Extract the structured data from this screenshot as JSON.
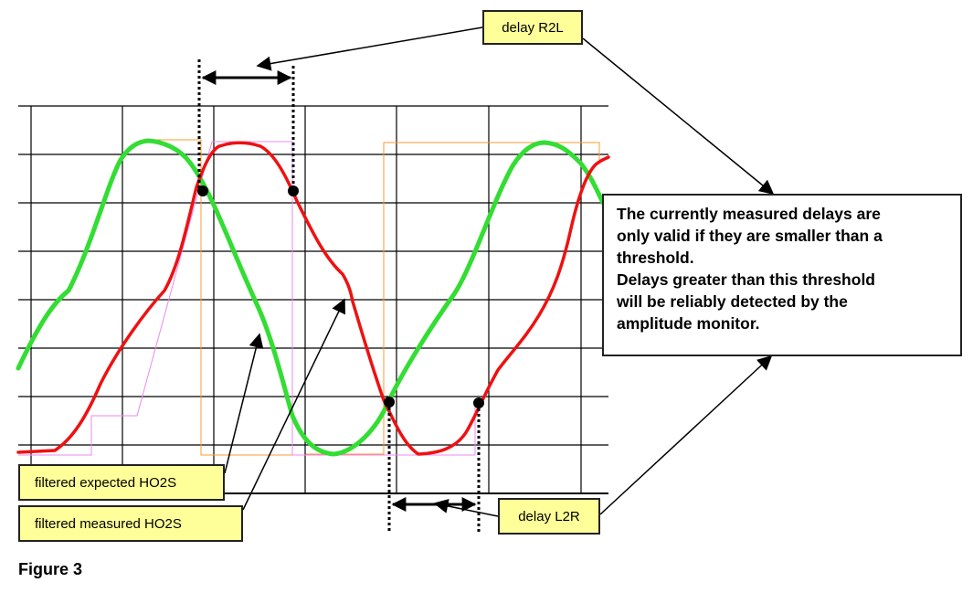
{
  "labels": {
    "delay_r2l": "delay R2L",
    "delay_l2r": "delay L2R",
    "expected": "filtered expected HO2S",
    "measured": "filtered measured HO2S"
  },
  "note": {
    "lines": [
      "The currently measured delays are",
      "only valid if they are smaller than a",
      "threshold.",
      "Delays greater than this threshold",
      "will be reliably detected by the",
      "amplitude monitor."
    ]
  },
  "caption": "Figure 3",
  "colors": {
    "expected_trace": "#33dd33",
    "measured_trace": "#ee1111",
    "label_fill": "#ffff99",
    "grid": "#000000"
  }
}
